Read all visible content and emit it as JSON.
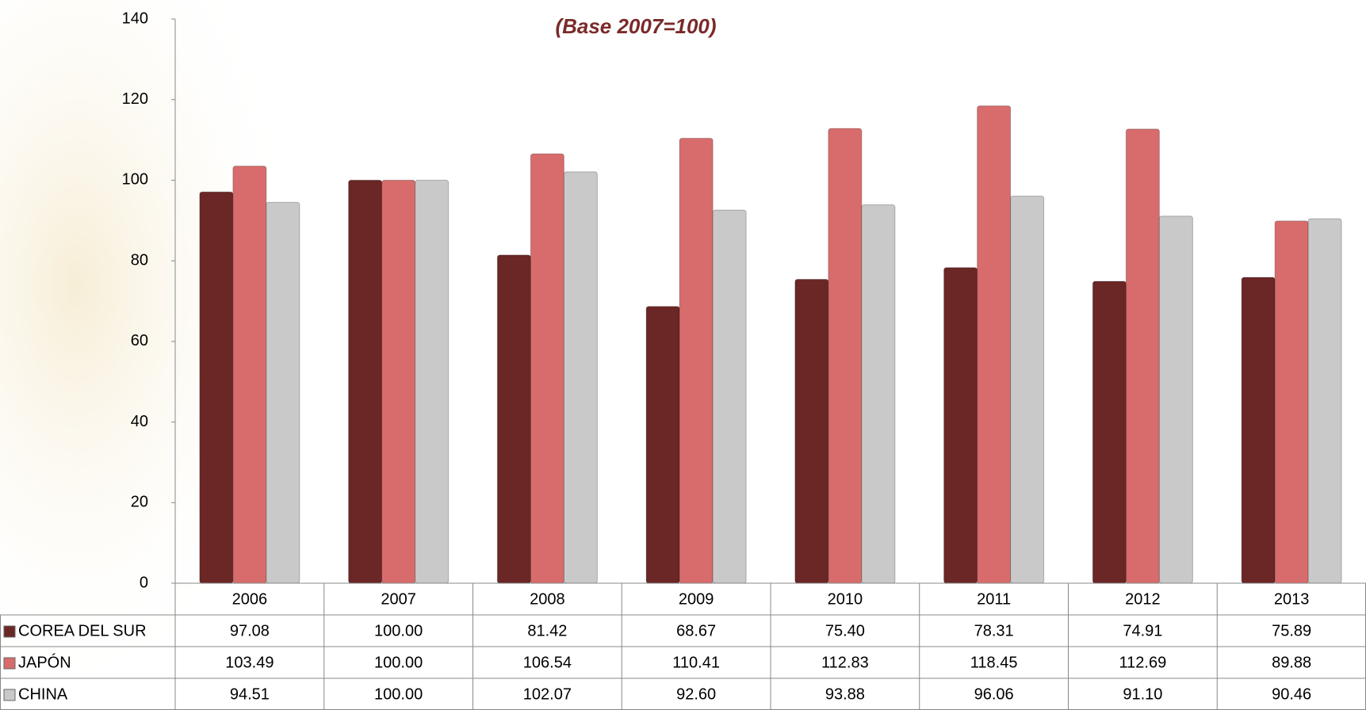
{
  "chart_data": {
    "type": "bar",
    "subtitle": "(Base 2007=100)",
    "categories": [
      "2006",
      "2007",
      "2008",
      "2009",
      "2010",
      "2011",
      "2012",
      "2013"
    ],
    "series": [
      {
        "name": "COREA DEL SUR",
        "color": "#6b2626",
        "values": [
          97.08,
          100,
          81.42,
          68.67,
          75.4,
          78.31,
          74.91,
          75.89
        ],
        "value_labels": [
          "97.08",
          "100.00",
          "81.42",
          "68.67",
          "75.40",
          "78.31",
          "74.91",
          "75.89"
        ]
      },
      {
        "name": "JAPÓN",
        "color": "#d86c6c",
        "values": [
          103.49,
          100,
          106.54,
          110.41,
          112.83,
          118.45,
          112.69,
          89.88
        ],
        "value_labels": [
          "103.49",
          "100.00",
          "106.54",
          "110.41",
          "112.83",
          "118.45",
          "112.69",
          "89.88"
        ]
      },
      {
        "name": "CHINA",
        "color": "#c9c9c9",
        "values": [
          94.51,
          100,
          102.07,
          92.6,
          93.88,
          96.06,
          91.1,
          90.46
        ],
        "value_labels": [
          "94.51",
          "100.00",
          "102.07",
          "92.60",
          "93.88",
          "96.06",
          "91.10",
          "90.46"
        ]
      }
    ],
    "ylim": [
      0,
      140
    ],
    "yticks": [
      0,
      20,
      40,
      60,
      80,
      100,
      120,
      140
    ],
    "grid": false
  }
}
